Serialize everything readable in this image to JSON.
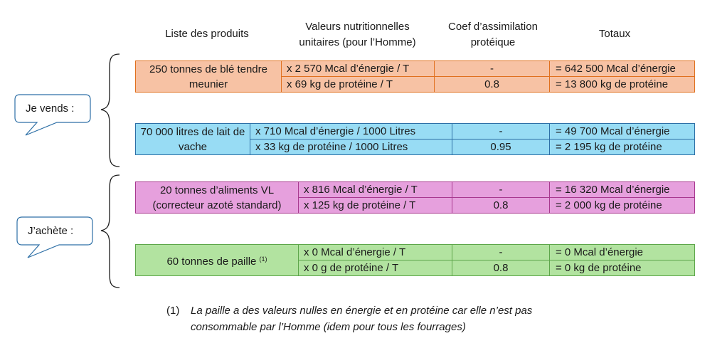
{
  "headers": {
    "products": "Liste des produits",
    "nutrition": [
      "Valeurs nutritionnelles",
      "unitaires (pour l’Homme)"
    ],
    "coef": [
      "Coef d’assimilation",
      "protéique"
    ],
    "totals": "Totaux"
  },
  "labels": {
    "sell": "Je vends :",
    "buy": "J’achète :"
  },
  "rows": [
    {
      "product": "250 tonnes de blé tendre meunier",
      "energy_value": "x 2 570 Mcal d’énergie / T",
      "protein_value": "x 69 kg de protéine / T",
      "energy_coef": "-",
      "protein_coef": "0.8",
      "energy_total": "= 642 500 Mcal d’énergie",
      "protein_total": "= 13 800 kg de protéine"
    },
    {
      "product": "70 000 litres de lait de vache",
      "energy_value": "x 710 Mcal d’énergie / 1000 Litres",
      "protein_value": "x 33 kg de protéine / 1000 Litres",
      "energy_coef": "-",
      "protein_coef": "0.95",
      "energy_total": "= 49 700 Mcal d’énergie",
      "protein_total": "= 2 195 kg de protéine"
    },
    {
      "product": "20 tonnes d’aliments VL (correcteur azoté standard)",
      "energy_value": "x 816 Mcal d’énergie / T",
      "protein_value": "x 125 kg de protéine / T",
      "energy_coef": "-",
      "protein_coef": "0.8",
      "energy_total": "= 16 320 Mcal d’énergie",
      "protein_total": "= 2 000 kg de protéine"
    },
    {
      "product": "60 tonnes de paille",
      "product_note": "(1)",
      "energy_value": "x 0 Mcal d’énergie / T",
      "protein_value": "x 0 g de protéine / T",
      "energy_coef": "-",
      "protein_coef": "0.8",
      "energy_total": "= 0 Mcal d’énergie",
      "protein_total": "= 0 kg de protéine"
    }
  ],
  "footnote": {
    "marker": "(1)",
    "lines": [
      "La paille a des valeurs nulles en énergie et en protéine car elle n’est pas",
      "consommable par l’Homme (idem pour tous les fourrages)"
    ]
  },
  "colors": {
    "wheat": "#f7c2a4",
    "milk": "#98dcf4",
    "feed": "#e6a0dd",
    "straw": "#b2e3a0",
    "bubble_border": "#2d6fa6"
  }
}
